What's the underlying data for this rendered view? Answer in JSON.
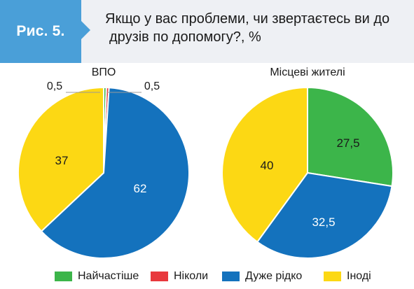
{
  "figure": {
    "label": "Рис. 5.",
    "title_line1": "Якщо у вас проблеми, чи звертаєтесь ви до",
    "title_line2": "друзів по допомогу?, %"
  },
  "chart_data": [
    {
      "type": "pie",
      "title": "ВПО",
      "categories": [
        "Найчастіше",
        "Ніколи",
        "Дуже рідко",
        "Іноді"
      ],
      "values": [
        0.5,
        0.5,
        62,
        37
      ],
      "labels": [
        "0,5",
        "0,5",
        "62",
        "37"
      ],
      "colors": [
        "#3cb54a",
        "#e8383d",
        "#1472bd",
        "#fcd814"
      ]
    },
    {
      "type": "pie",
      "title": "Місцеві жителі",
      "categories": [
        "Найчастіше",
        "Ніколи",
        "Дуже рідко",
        "Іноді"
      ],
      "values": [
        27.5,
        0,
        32.5,
        40
      ],
      "labels": [
        "27,5",
        "",
        "32,5",
        "40"
      ],
      "colors": [
        "#3cb54a",
        "#e8383d",
        "#1472bd",
        "#fcd814"
      ]
    }
  ],
  "legend": [
    {
      "label": "Найчастіше",
      "color": "#3cb54a"
    },
    {
      "label": "Ніколи",
      "color": "#e8383d"
    },
    {
      "label": "Дуже рідко",
      "color": "#1472bd"
    },
    {
      "label": "Іноді",
      "color": "#fcd814"
    }
  ]
}
